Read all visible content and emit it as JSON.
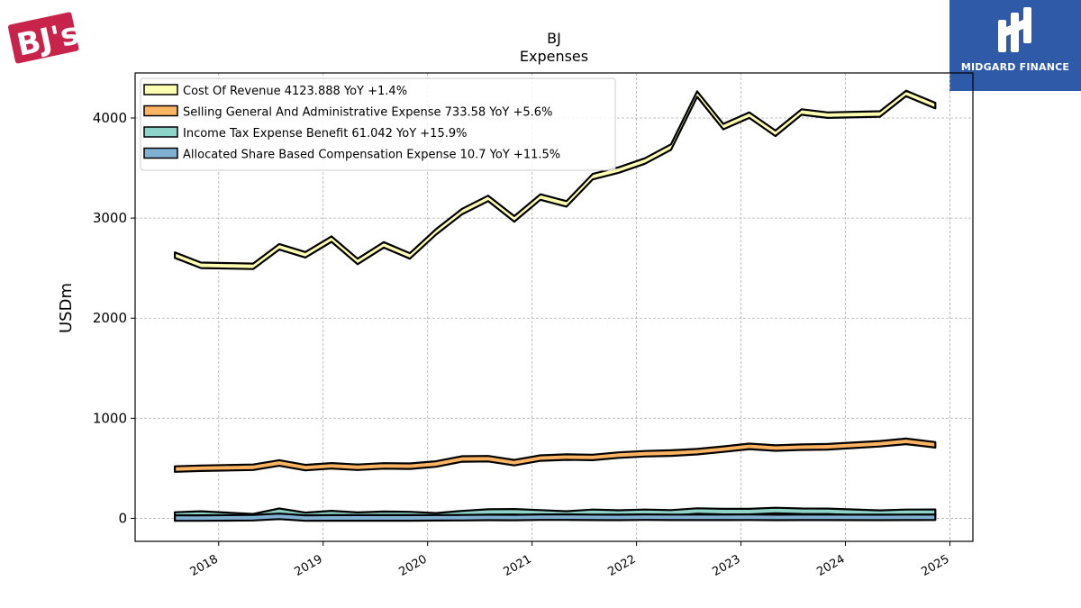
{
  "logos": {
    "left_text": "BJ's",
    "right_text": "MIDGARD FINANCE"
  },
  "chart_data": {
    "type": "area",
    "title": "BJ",
    "subtitle": "Expenses",
    "ylabel": "USDm",
    "xlabel": "",
    "ylim": [
      -230,
      4450
    ],
    "xlim": [
      2017.2,
      2025.22
    ],
    "yticks": [
      0,
      1000,
      2000,
      3000,
      4000
    ],
    "xticks": [
      2018,
      2019,
      2020,
      2021,
      2022,
      2023,
      2024,
      2025
    ],
    "grid": true,
    "legend_position": "top-left",
    "x": [
      2017.58,
      2017.83,
      2018.33,
      2018.58,
      2018.83,
      2019.08,
      2019.33,
      2019.58,
      2019.83,
      2020.08,
      2020.33,
      2020.58,
      2020.83,
      2021.08,
      2021.33,
      2021.58,
      2021.83,
      2022.08,
      2022.33,
      2022.58,
      2022.83,
      2023.08,
      2023.33,
      2023.58,
      2023.83,
      2024.33,
      2024.58,
      2024.86
    ],
    "series": [
      {
        "name": "Cost Of Revenue  4123.888 YoY +1.4%",
        "color": "#ffffb3",
        "values": [
          2630,
          2528,
          2518,
          2713,
          2633,
          2790,
          2567,
          2732,
          2622,
          2862,
          3065,
          3197,
          2992,
          3210,
          3142,
          3414,
          3480,
          3570,
          3710,
          4239,
          3914,
          4028,
          3847,
          4060,
          4028,
          4040,
          4245,
          4124
        ]
      },
      {
        "name": "Selling General And Administrative Expense  733.58 YoY +5.6%",
        "color": "#fdb462",
        "values": [
          492,
          500,
          510,
          553,
          507,
          525,
          510,
          524,
          521,
          543,
          593,
          596,
          556,
          602,
          612,
          608,
          632,
          645,
          652,
          666,
          691,
          719,
          702,
          711,
          715,
          745,
          769,
          734
        ]
      },
      {
        "name": "Income Tax Expense Benefit  61.042 YoY +15.9%",
        "color": "#8dd3c7",
        "values": [
          33,
          43,
          16,
          71,
          30,
          48,
          31,
          40,
          38,
          25,
          47,
          63,
          66,
          55,
          43,
          60,
          53,
          60,
          55,
          73,
          67,
          67,
          78,
          71,
          70,
          52,
          60,
          61
        ]
      },
      {
        "name": "Allocated Share Based Compensation Expense  10.7 YoY +11.5%",
        "color": "#80b1d3",
        "values": [
          3,
          3,
          6,
          20,
          3,
          4,
          4,
          4,
          4,
          5,
          6,
          9,
          8,
          12,
          12,
          10,
          9,
          12,
          10,
          10,
          10,
          11,
          9,
          10,
          10,
          9,
          10,
          10.7
        ]
      }
    ]
  }
}
